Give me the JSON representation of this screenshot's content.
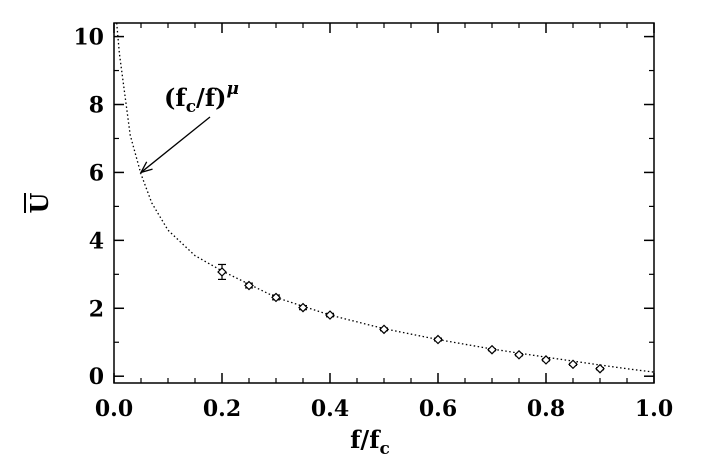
{
  "chart_data": {
    "type": "scatter",
    "xlabel": "f/f",
    "xlabel_sub": "c",
    "ylabel": "U",
    "xlim": [
      0.0,
      1.0
    ],
    "ylim": [
      -0.2,
      10.4
    ],
    "x_ticks": [
      0.0,
      0.2,
      0.4,
      0.6,
      0.8,
      1.0
    ],
    "x_tick_labels": [
      "0.0",
      "0.2",
      "0.4",
      "0.6",
      "0.8",
      "1.0"
    ],
    "y_ticks": [
      0,
      2,
      4,
      6,
      8,
      10
    ],
    "y_tick_labels": [
      "0",
      "2",
      "4",
      "6",
      "8",
      "10"
    ],
    "grid": false,
    "series": [
      {
        "style": "diamond markers with error bars",
        "x": [
          0.2,
          0.25,
          0.3,
          0.35,
          0.4,
          0.5,
          0.6,
          0.7,
          0.75,
          0.8,
          0.85,
          0.9
        ],
        "y": [
          3.07,
          2.67,
          2.32,
          2.02,
          1.8,
          1.38,
          1.08,
          0.78,
          0.63,
          0.48,
          0.35,
          0.22
        ],
        "yerr": [
          0.22,
          0.07,
          0.07,
          0.06,
          0.05,
          0.04,
          0.04,
          0.03,
          0.03,
          0.03,
          0.03,
          0.03
        ]
      },
      {
        "style": "dotted curve",
        "x": [
          0.005,
          0.01,
          0.02,
          0.03,
          0.05,
          0.07,
          0.1,
          0.15,
          0.2,
          0.3,
          0.4,
          0.5,
          0.6,
          0.7,
          0.8,
          0.9,
          0.95,
          1.0
        ],
        "y": [
          10.6,
          9.5,
          8.3,
          7.1,
          5.95,
          5.1,
          4.3,
          3.55,
          3.1,
          2.32,
          1.8,
          1.4,
          1.08,
          0.8,
          0.56,
          0.33,
          0.22,
          0.12
        ]
      }
    ],
    "annotations": [
      {
        "main": "(f",
        "sub": "c",
        "rest": "/f)",
        "sup": "μ",
        "arrow_to": [
          0.05,
          6.0
        ]
      }
    ]
  }
}
